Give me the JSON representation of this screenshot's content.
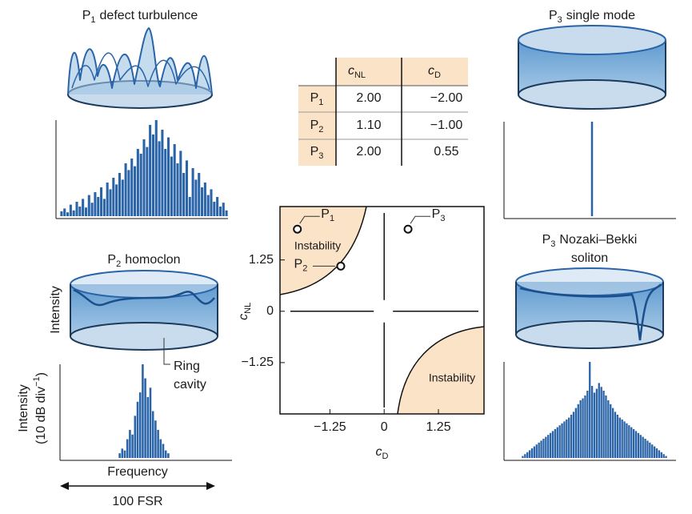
{
  "panels": [
    {
      "symbol": "P",
      "sub": "1",
      "text": "defect turbulence"
    },
    {
      "symbol": "P",
      "sub": "2",
      "text": "homoclon"
    },
    {
      "symbol": "P",
      "sub": "3",
      "text": "single mode"
    },
    {
      "symbol": "P",
      "sub": "3",
      "text": "Nozaki–Bekki",
      "line2": "soliton"
    }
  ],
  "labels": {
    "intensity": "Intensity",
    "ring": [
      "Ring",
      "cavity"
    ],
    "db_axis": {
      "line1": "Intensity",
      "line2": "(10 dB div",
      "sup": "−1",
      "close": ")"
    },
    "frequency": "Frequency",
    "span": "100 FSR"
  },
  "table": {
    "columns": [
      {
        "symbol": "c",
        "sub": "NL"
      },
      {
        "symbol": "c",
        "sub": "D"
      }
    ],
    "rows": [
      {
        "symbol": "P",
        "sub": "1",
        "cells": [
          "2.00",
          "−2.00"
        ]
      },
      {
        "symbol": "P",
        "sub": "2",
        "cells": [
          "1.10",
          "−1.00"
        ]
      },
      {
        "symbol": "P",
        "sub": "3",
        "cells": [
          "2.00",
          "0.55"
        ]
      }
    ]
  },
  "chart_data": [
    {
      "type": "scatter",
      "x": [
        -2,
        -1,
        0.55
      ],
      "y": [
        2,
        1.1,
        2
      ],
      "point_labels": [
        {
          "symbol": "P",
          "sub": "1"
        },
        {
          "symbol": "P",
          "sub": "2"
        },
        {
          "symbol": "P",
          "sub": "3"
        }
      ],
      "xlabel": {
        "symbol": "c",
        "sub": "D"
      },
      "ylabel": {
        "symbol": "c",
        "sub": "NL"
      },
      "xlim": [
        -2.4,
        2.3
      ],
      "ylim": [
        -2.5,
        2.55
      ],
      "xticks": [
        {
          "value": -1.25,
          "label": "−1.25"
        },
        0,
        1.25
      ],
      "yticks": [
        {
          "value": -1.25,
          "label": "−1.25"
        },
        0,
        1.25
      ],
      "annotations": [
        "Instability",
        "Instability"
      ],
      "region_color": "#fbe3c8"
    },
    {
      "type": "bar",
      "color": "#2a64a8",
      "ylim": [
        0,
        100
      ],
      "values": [
        5,
        8,
        4,
        12,
        6,
        15,
        10,
        18,
        9,
        22,
        14,
        25,
        20,
        30,
        18,
        35,
        28,
        40,
        33,
        45,
        38,
        55,
        48,
        60,
        52,
        70,
        65,
        80,
        72,
        95,
        85,
        100,
        78,
        90,
        70,
        82,
        62,
        75,
        55,
        68,
        45,
        58,
        20,
        50,
        38,
        45,
        30,
        35,
        22,
        28,
        15,
        20,
        10,
        14,
        6
      ]
    },
    {
      "type": "bar",
      "color": "#2a64a8",
      "ylim": [
        0,
        100
      ],
      "values": [
        100
      ]
    },
    {
      "type": "bar",
      "color": "#2a64a8",
      "ylim": [
        0,
        100
      ],
      "values": [
        5,
        10,
        8,
        20,
        30,
        25,
        45,
        60,
        70,
        100,
        85,
        65,
        75,
        50,
        40,
        30,
        20,
        15,
        8,
        5
      ]
    },
    {
      "type": "bar",
      "color": "#2a64a8",
      "ylim": [
        0,
        100
      ],
      "values": [
        2,
        4,
        6,
        8,
        10,
        12,
        14,
        16,
        18,
        20,
        22,
        24,
        26,
        28,
        30,
        32,
        34,
        36,
        38,
        40,
        42,
        45,
        48,
        52,
        56,
        60,
        62,
        65,
        70,
        100,
        75,
        68,
        72,
        78,
        74,
        70,
        65,
        60,
        56,
        52,
        48,
        45,
        42,
        40,
        38,
        36,
        34,
        32,
        30,
        28,
        26,
        24,
        22,
        20,
        18,
        16,
        14,
        12,
        10,
        8,
        6,
        4,
        2
      ]
    }
  ]
}
